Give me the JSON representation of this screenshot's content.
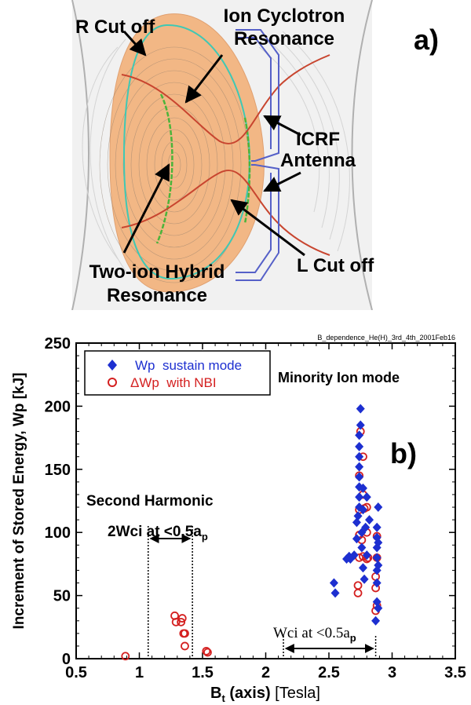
{
  "panel_a": {
    "label": "a)",
    "annotations": {
      "r_cutoff": "R Cut off",
      "ion_cyclotron_1": "Ion Cyclotron",
      "ion_cyclotron_2": "Resonance",
      "icrf_1": "ICRF",
      "icrf_2": "Antenna",
      "l_cutoff": "L Cut off",
      "two_ion_1": "Two-ion Hybrid",
      "two_ion_2": "Resonance"
    },
    "colors": {
      "plasma": "#f2b785",
      "r_cutoff_curve": "#3fc8b4",
      "ion_cyclotron_curve": "#c8452f",
      "hybrid_curve": "#4bb43a",
      "antenna": "#5560c8",
      "frame_background": "#eeeeee"
    }
  },
  "panel_b": {
    "label": "b)",
    "header_note": "B_dependence_He(H)_3rd_4th_2001Feb16",
    "annotations": {
      "minority_mode": "Minority Ion mode",
      "second_harmonic": "Second Harmonic",
      "two_wci_text": "2Wci at <0.5a",
      "two_wci_sub": "p",
      "wci_text": "Wci at <0.5a",
      "wci_sub": "p"
    },
    "ranges": {
      "second_harmonic": [
        1.07,
        1.42
      ],
      "fundamental": [
        2.14,
        2.87
      ]
    }
  },
  "chart_data": {
    "type": "scatter",
    "title": "",
    "xlabel": "B",
    "xlabel_sub": "t",
    "xlabel_rest": " (axis)",
    "xlabel_unit": " [Tesla]",
    "ylabel": "Increment of Stored Energy, Wp  [kJ]",
    "xlim": [
      0.5,
      3.5
    ],
    "ylim": [
      0,
      250
    ],
    "x_ticks": [
      0.5,
      1,
      1.5,
      2,
      2.5,
      3,
      3.5
    ],
    "x_tick_labels": [
      "0.5",
      "1",
      "1.5",
      "2",
      "2.5",
      "3",
      "3.5"
    ],
    "y_ticks": [
      0,
      50,
      100,
      150,
      200,
      250
    ],
    "y_tick_labels": [
      "0",
      "50",
      "100",
      "150",
      "200",
      "250"
    ],
    "legend_position": "top-left",
    "series": [
      {
        "name": "Wp  sustain mode",
        "marker": "diamond",
        "color": "#1d2fd0",
        "points": [
          [
            2.54,
            60
          ],
          [
            2.55,
            52
          ],
          [
            2.64,
            79
          ],
          [
            2.66,
            81
          ],
          [
            2.67,
            79
          ],
          [
            2.7,
            82
          ],
          [
            2.72,
            95
          ],
          [
            2.72,
            108
          ],
          [
            2.73,
            113
          ],
          [
            2.74,
            120
          ],
          [
            2.74,
            128
          ],
          [
            2.74,
            136
          ],
          [
            2.74,
            144
          ],
          [
            2.74,
            152
          ],
          [
            2.74,
            160
          ],
          [
            2.74,
            168
          ],
          [
            2.74,
            177
          ],
          [
            2.75,
            185
          ],
          [
            2.75,
            198
          ],
          [
            2.76,
            88
          ],
          [
            2.76,
            100
          ],
          [
            2.77,
            72
          ],
          [
            2.77,
            118
          ],
          [
            2.77,
            135
          ],
          [
            2.78,
            63
          ],
          [
            2.79,
            104
          ],
          [
            2.8,
            82
          ],
          [
            2.8,
            128
          ],
          [
            2.82,
            110
          ],
          [
            2.87,
            30
          ],
          [
            2.88,
            45
          ],
          [
            2.88,
            60
          ],
          [
            2.88,
            70
          ],
          [
            2.88,
            80
          ],
          [
            2.88,
            88
          ],
          [
            2.88,
            96
          ],
          [
            2.88,
            104
          ],
          [
            2.89,
            120
          ],
          [
            2.89,
            40
          ],
          [
            2.89,
            74
          ],
          [
            2.89,
            92
          ]
        ]
      },
      {
        "name": "ΔWp  with NBI",
        "marker": "open-circle",
        "color": "#d42020",
        "points": [
          [
            0.89,
            2
          ],
          [
            1.28,
            34
          ],
          [
            1.29,
            29
          ],
          [
            1.33,
            29
          ],
          [
            1.34,
            32
          ],
          [
            1.35,
            20
          ],
          [
            1.36,
            10
          ],
          [
            1.36,
            20
          ],
          [
            1.53,
            6
          ],
          [
            1.54,
            5
          ],
          [
            2.73,
            52
          ],
          [
            2.73,
            58
          ],
          [
            2.74,
            98
          ],
          [
            2.74,
            118
          ],
          [
            2.74,
            80
          ],
          [
            2.74,
            145
          ],
          [
            2.75,
            180
          ],
          [
            2.76,
            94
          ],
          [
            2.77,
            160
          ],
          [
            2.77,
            130
          ],
          [
            2.77,
            81
          ],
          [
            2.78,
            119
          ],
          [
            2.8,
            79
          ],
          [
            2.8,
            100
          ],
          [
            2.8,
            120
          ],
          [
            2.81,
            80
          ],
          [
            2.87,
            56
          ],
          [
            2.87,
            65
          ],
          [
            2.87,
            38
          ],
          [
            2.88,
            42
          ],
          [
            2.88,
            80
          ],
          [
            2.88,
            97
          ]
        ]
      }
    ]
  }
}
